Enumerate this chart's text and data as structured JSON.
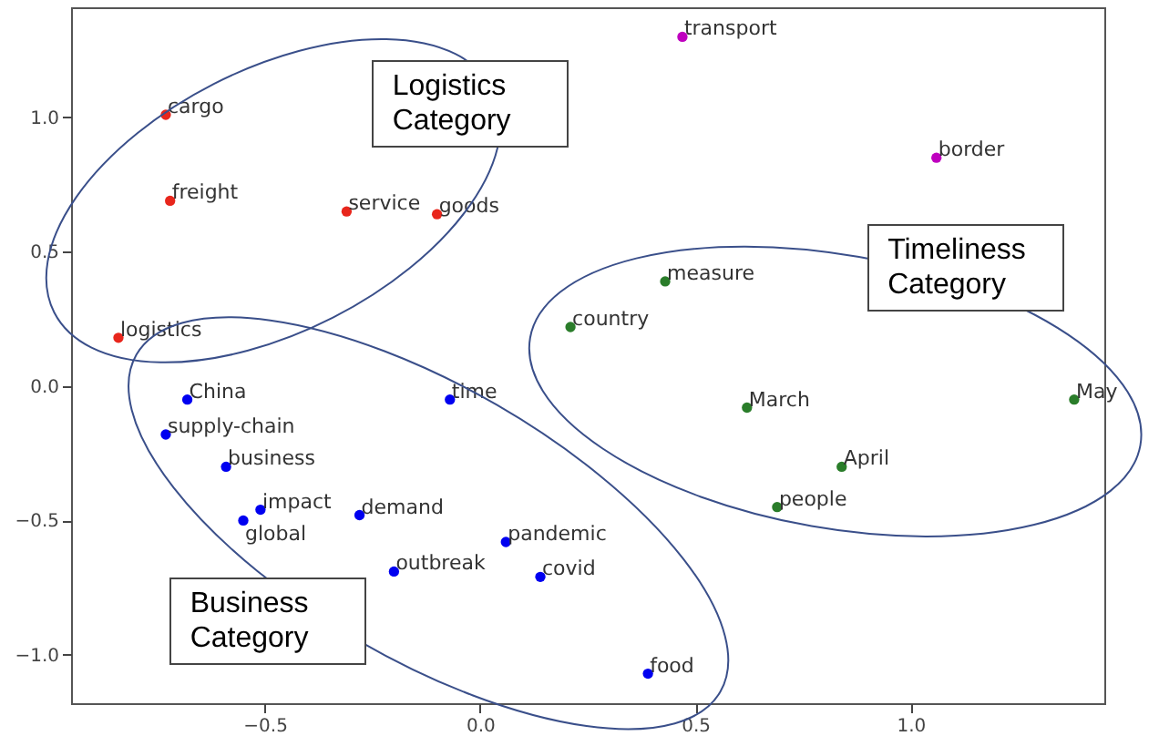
{
  "chart_data": {
    "type": "scatter",
    "marker": "circle",
    "grid": false,
    "xlim": [
      -0.95,
      1.45
    ],
    "ylim": [
      -1.18,
      1.41
    ],
    "xticks": [
      {
        "value": -0.5,
        "label": "−0.5"
      },
      {
        "value": 0,
        "label": "0.0"
      },
      {
        "value": 0.5,
        "label": "0.5"
      },
      {
        "value": 1,
        "label": "1.0"
      }
    ],
    "yticks": [
      {
        "value": -1,
        "label": "−1.0"
      },
      {
        "value": -0.5,
        "label": "−0.5"
      },
      {
        "value": 0,
        "label": "0.0"
      },
      {
        "value": 0.5,
        "label": "0.5"
      },
      {
        "value": 1,
        "label": "1.0"
      }
    ],
    "series": [
      {
        "color": "#e8261c",
        "x": [
          -0.73,
          -0.72,
          -0.31,
          -0.1,
          -0.84
        ],
        "values": [
          1.01,
          0.69,
          0.65,
          0.64,
          0.18
        ]
      },
      {
        "color": "#bf00bf",
        "x": [
          0.47,
          1.06
        ],
        "values": [
          1.3,
          0.85
        ]
      },
      {
        "color": "#2a7d2a",
        "x": [
          0.43,
          0.21,
          0.62,
          0.84,
          0.69,
          1.38
        ],
        "values": [
          0.39,
          0.22,
          -0.08,
          -0.3,
          -0.45,
          -0.05
        ]
      },
      {
        "color": "#0000f0",
        "x": [
          -0.68,
          -0.73,
          -0.59,
          -0.51,
          -0.55,
          -0.28,
          -0.07,
          0.06,
          -0.2,
          0.14,
          0.39
        ],
        "values": [
          -0.05,
          -0.18,
          -0.3,
          -0.46,
          -0.5,
          -0.48,
          -0.05,
          -0.58,
          -0.69,
          -0.71,
          -1.07
        ]
      }
    ],
    "annotations": [
      {
        "text": "cargo",
        "x": -0.73,
        "y": 1.01
      },
      {
        "text": "freight",
        "x": -0.72,
        "y": 0.69
      },
      {
        "text": "service",
        "x": -0.31,
        "y": 0.65
      },
      {
        "text": "goods",
        "x": -0.1,
        "y": 0.64
      },
      {
        "text": "logistics",
        "x": -0.84,
        "y": 0.18
      },
      {
        "text": "transport",
        "x": 0.47,
        "y": 1.3
      },
      {
        "text": "border",
        "x": 1.06,
        "y": 0.85
      },
      {
        "text": "measure",
        "x": 0.43,
        "y": 0.39
      },
      {
        "text": "country",
        "x": 0.21,
        "y": 0.22
      },
      {
        "text": "March",
        "x": 0.62,
        "y": -0.08
      },
      {
        "text": "April",
        "x": 0.84,
        "y": -0.3
      },
      {
        "text": "people",
        "x": 0.69,
        "y": -0.45
      },
      {
        "text": "May",
        "x": 1.38,
        "y": -0.05
      },
      {
        "text": "China",
        "x": -0.68,
        "y": -0.05
      },
      {
        "text": "supply-chain",
        "x": -0.73,
        "y": -0.18
      },
      {
        "text": "business",
        "x": -0.59,
        "y": -0.3
      },
      {
        "text": "impact",
        "x": -0.51,
        "y": -0.46
      },
      {
        "text": "global",
        "x": -0.55,
        "y": -0.5
      },
      {
        "text": "demand",
        "x": -0.28,
        "y": -0.48
      },
      {
        "text": "time",
        "x": -0.07,
        "y": -0.05
      },
      {
        "text": "pandemic",
        "x": 0.06,
        "y": -0.58
      },
      {
        "text": "outbreak",
        "x": -0.2,
        "y": -0.69
      },
      {
        "text": "covid",
        "x": 0.14,
        "y": -0.71
      },
      {
        "text": "food",
        "x": 0.39,
        "y": -1.07
      },
      "Logistics Category",
      "Timeliness Category",
      "Business Category"
    ]
  }
}
